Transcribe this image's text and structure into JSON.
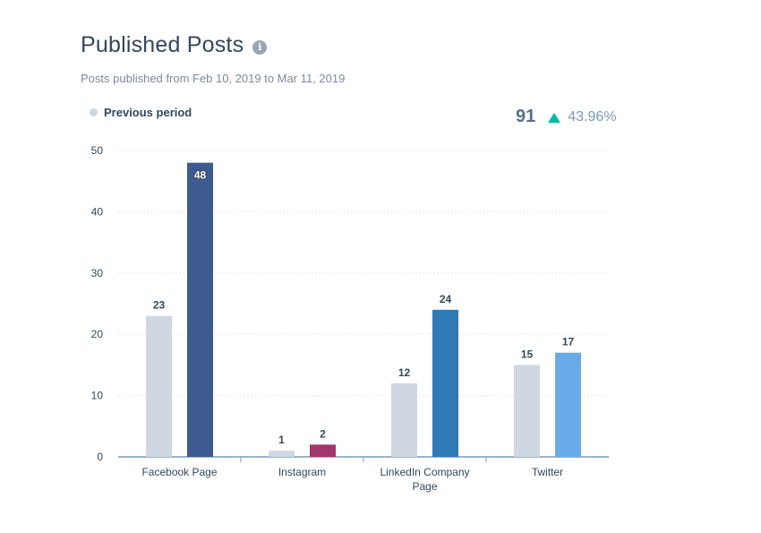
{
  "header": {
    "title": "Published Posts",
    "subtitle": "Posts published from Feb 10, 2019 to Mar 11, 2019"
  },
  "summary": {
    "total": "91",
    "change": "43.96%",
    "change_direction": "up",
    "change_color": "#00bda5"
  },
  "legend": {
    "previous_label": "Previous period",
    "previous_color": "#cfd8e2"
  },
  "chart_data": {
    "type": "bar",
    "title": "Published Posts",
    "subtitle": "Posts published from Feb 10, 2019 to Mar 11, 2019",
    "categories": [
      "Facebook Page",
      "Instagram",
      "LinkedIn Company Page",
      "Twitter"
    ],
    "category_label_lines": [
      [
        "Facebook Page"
      ],
      [
        "Instagram"
      ],
      [
        "LinkedIn Company",
        "Page"
      ],
      [
        "Twitter"
      ]
    ],
    "series": [
      {
        "name": "Previous period",
        "values": [
          23,
          1,
          12,
          15
        ],
        "colors": [
          "#cfd8e2",
          "#cfd8e2",
          "#cfd8e2",
          "#cfd8e2"
        ]
      },
      {
        "values": [
          48,
          2,
          24,
          17
        ],
        "colors": [
          "#3d5a91",
          "#a2366e",
          "#2f79b5",
          "#69aae9"
        ]
      }
    ],
    "data_labels": [
      [
        "23",
        "1",
        "12",
        "15"
      ],
      [
        "48",
        "2",
        "24",
        "17"
      ]
    ],
    "ylim": [
      0,
      50
    ],
    "yticks": [
      0,
      10,
      20,
      30,
      40,
      50
    ],
    "xlabel": "",
    "ylabel": "",
    "grid": true,
    "legend_position": "top-left"
  }
}
